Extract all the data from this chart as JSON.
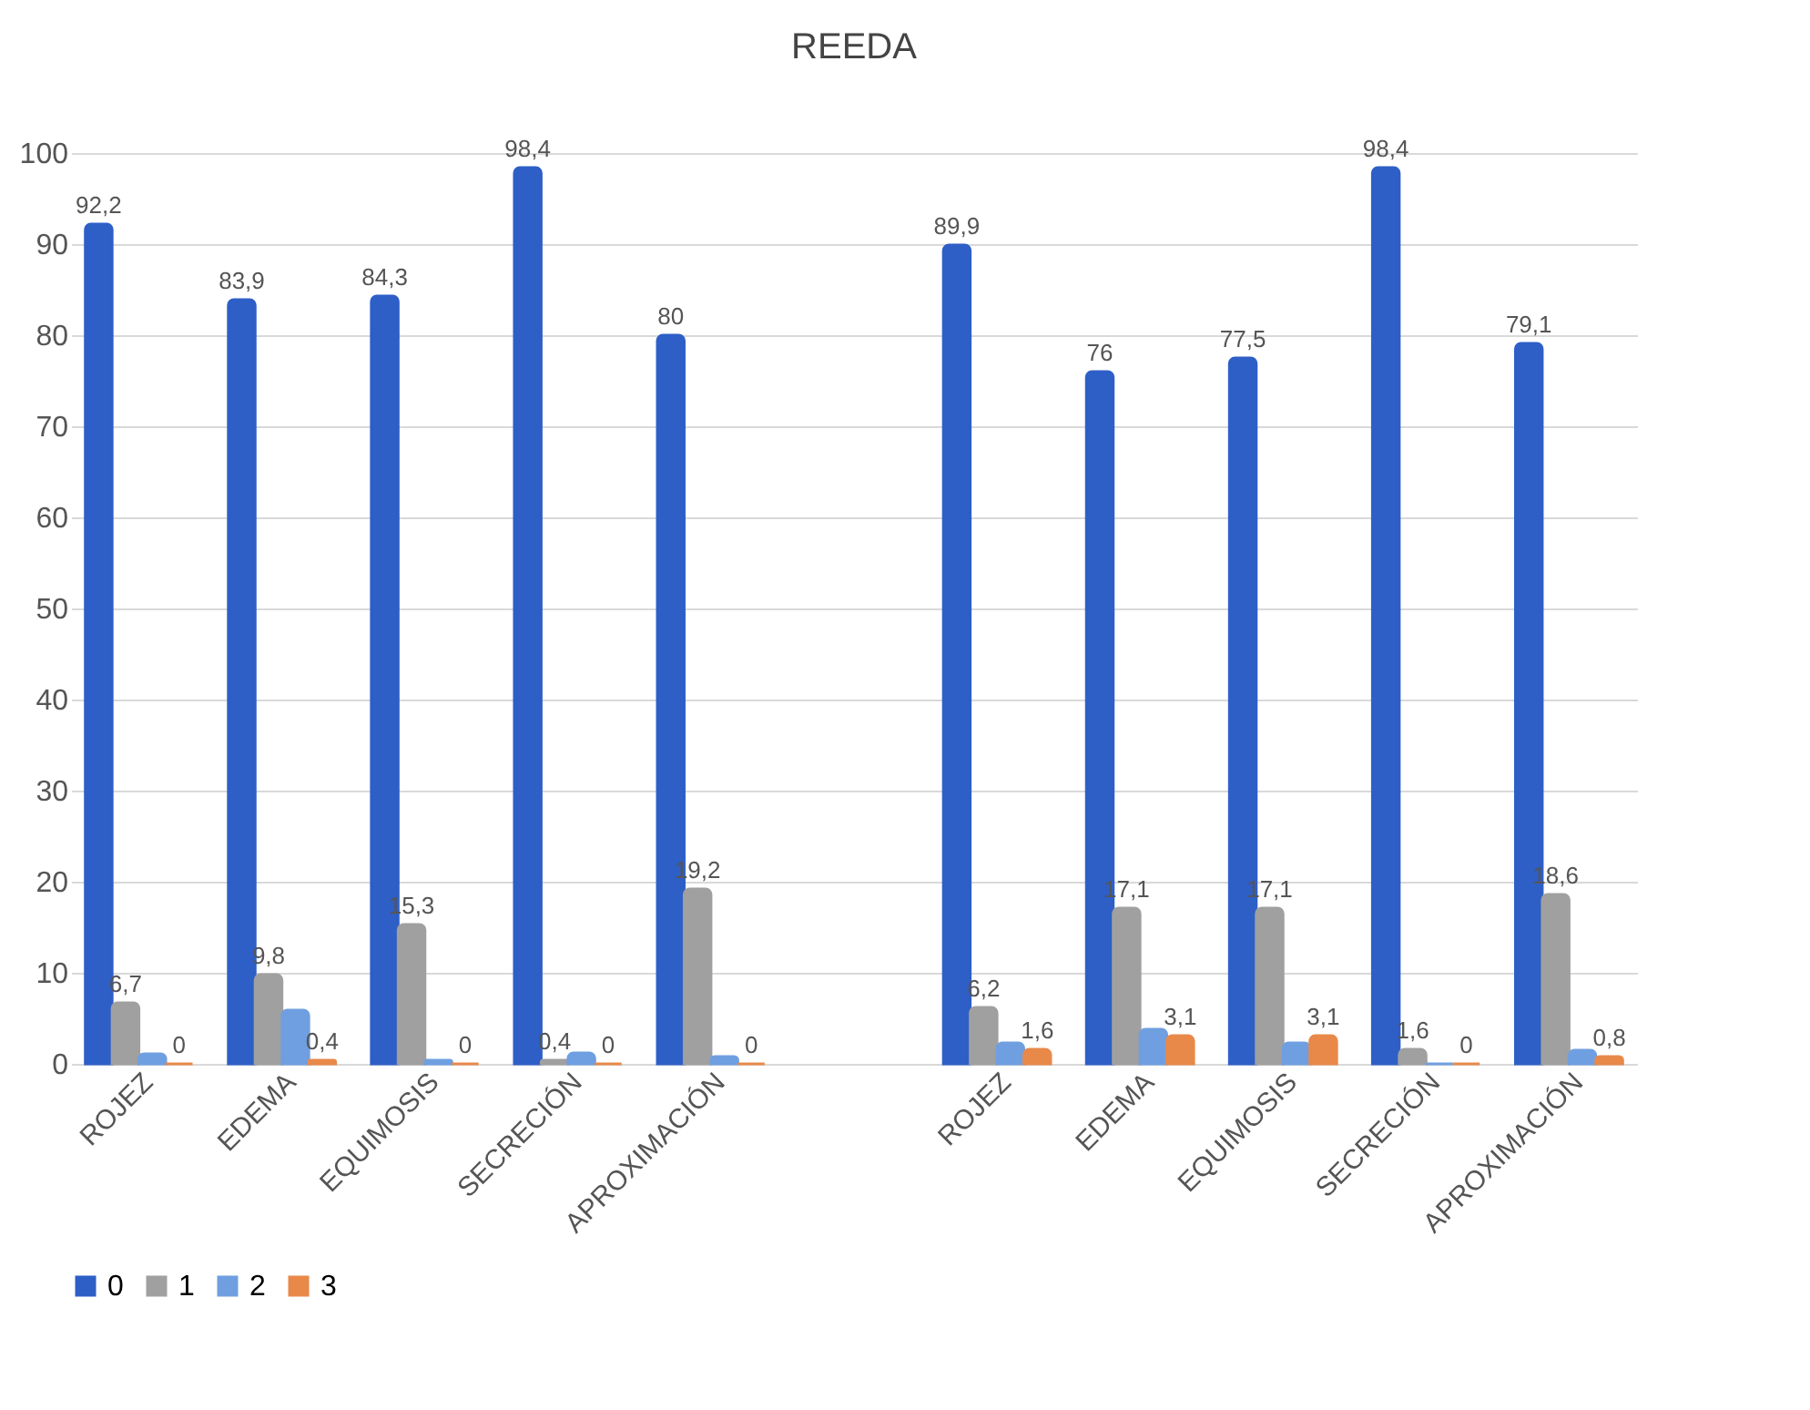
{
  "chart_data": {
    "type": "bar",
    "title": "REEDA",
    "categories": [
      "ROJEZ",
      "EDEMA",
      "EQUIMOSIS",
      "SECRECIÓN",
      "APROXIMACIÓN",
      null,
      "ROJEZ",
      "EDEMA",
      "EQUIMOSIS",
      "SECRECIÓN",
      "APROXIMACIÓN"
    ],
    "series": [
      {
        "name": "0",
        "color": "#2e5fc7",
        "values": [
          92.2,
          83.9,
          84.3,
          98.4,
          80,
          null,
          89.9,
          76,
          77.5,
          98.4,
          79.1
        ],
        "value_labels": [
          "92,2",
          "83,9",
          "84,3",
          "98,4",
          "80",
          null,
          "89,9",
          "76",
          "77,5",
          "98,4",
          "79,1"
        ]
      },
      {
        "name": "1",
        "color": "#a0a0a0",
        "values": [
          6.7,
          9.8,
          15.3,
          0.4,
          19.2,
          null,
          6.2,
          17.1,
          17.1,
          1.6,
          18.6
        ],
        "value_labels": [
          "6,7",
          "9,8",
          "15,3",
          "0,4",
          "19,2",
          null,
          "6,2",
          "17,1",
          "17,1",
          "1,6",
          "18,6"
        ]
      },
      {
        "name": "2",
        "color": "#6f9fe0",
        "values": [
          1.1,
          5.9,
          0.4,
          1.2,
          0.8,
          null,
          2.3,
          3.8,
          2.3,
          0,
          1.5
        ]
      },
      {
        "name": "3",
        "color": "#e8894a",
        "values": [
          0,
          0.4,
          0,
          0,
          0,
          null,
          1.6,
          3.1,
          3.1,
          0,
          0.8
        ],
        "value_labels": [
          "0",
          "0,4",
          "0",
          "0",
          "0",
          null,
          "1,6",
          "3,1",
          "3,1",
          "0",
          "0,8"
        ]
      }
    ],
    "ylim": [
      0,
      100
    ],
    "yticks": [
      0,
      10,
      20,
      30,
      40,
      50,
      60,
      70,
      80,
      90,
      100
    ],
    "grid": "y",
    "legend": "bottom"
  }
}
